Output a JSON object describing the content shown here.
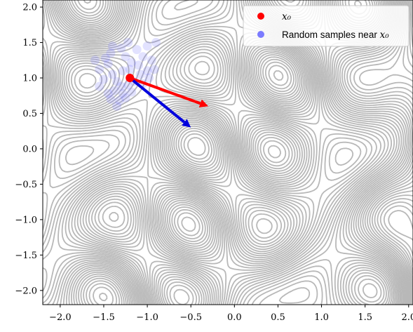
{
  "chart_data": {
    "type": "contour",
    "xlim": [
      -2.2,
      2.05
    ],
    "ylim": [
      -2.2,
      2.1
    ],
    "x_ticks": [
      -2.0,
      -1.5,
      -1.0,
      -0.5,
      0.0,
      0.5,
      1.0,
      1.5,
      2.0
    ],
    "x_tick_labels": [
      "−2.0",
      "−1.5",
      "−1.0",
      "−0.5",
      "0.0",
      "0.5",
      "1.0",
      "1.5",
      "2.0"
    ],
    "y_ticks": [
      2.0,
      1.5,
      1.0,
      0.5,
      0.0,
      -0.5,
      -1.0,
      -1.5,
      -2.0
    ],
    "y_tick_labels": [
      "2.0",
      "1.5",
      "1.0",
      "0.5",
      "0.0",
      "−0.5",
      "−1.0",
      "−1.5",
      "−2.0"
    ],
    "contour_color": "#b8b8b8",
    "x0": {
      "x": -1.2,
      "y": 1.0,
      "color": "#ff0000"
    },
    "samples": {
      "color": "#7b7bff",
      "points": [
        [
          -1.55,
          1.12
        ],
        [
          -1.45,
          1.2
        ],
        [
          -1.42,
          1.35
        ],
        [
          -1.3,
          1.42
        ],
        [
          -1.25,
          1.3
        ],
        [
          -1.18,
          1.22
        ],
        [
          -1.1,
          1.18
        ],
        [
          -1.05,
          1.3
        ],
        [
          -0.95,
          1.25
        ],
        [
          -1.5,
          0.98
        ],
        [
          -1.4,
          1.05
        ],
        [
          -1.35,
          0.95
        ],
        [
          -1.3,
          0.88
        ],
        [
          -1.22,
          0.9
        ],
        [
          -1.15,
          0.95
        ],
        [
          -1.08,
          1.05
        ],
        [
          -1.0,
          1.1
        ],
        [
          -0.92,
          1.12
        ],
        [
          -1.28,
          1.1
        ],
        [
          -1.2,
          1.12
        ],
        [
          -1.38,
          0.82
        ],
        [
          -1.28,
          0.78
        ],
        [
          -1.32,
          0.68
        ],
        [
          -1.35,
          0.6
        ],
        [
          -1.42,
          0.7
        ],
        [
          -1.05,
          0.92
        ],
        [
          -1.12,
          1.4
        ],
        [
          -1.0,
          1.45
        ],
        [
          -0.9,
          1.5
        ],
        [
          -1.48,
          1.28
        ],
        [
          -1.6,
          1.25
        ],
        [
          -1.22,
          1.5
        ],
        [
          -1.4,
          1.45
        ],
        [
          -0.98,
          1.0
        ],
        [
          -1.55,
          0.88
        ],
        [
          -1.45,
          0.78
        ],
        [
          -1.18,
          0.8
        ],
        [
          -1.25,
          0.72
        ]
      ]
    },
    "arrows": [
      {
        "name": "red-arrow",
        "from": [
          -1.2,
          1.0
        ],
        "to": [
          -0.3,
          0.6
        ],
        "color": "#ff0000"
      },
      {
        "name": "blue-arrow",
        "from": [
          -1.2,
          1.0
        ],
        "to": [
          -0.5,
          0.3
        ],
        "color": "#0000dd"
      }
    ],
    "legend": {
      "position": "top-right",
      "entries": [
        {
          "label_prefix": "",
          "label_sub": "x₀",
          "color": "#ff0000"
        },
        {
          "label_prefix": "Random samples near ",
          "label_sub": "x₀",
          "color": "#7b7bff"
        }
      ]
    }
  }
}
